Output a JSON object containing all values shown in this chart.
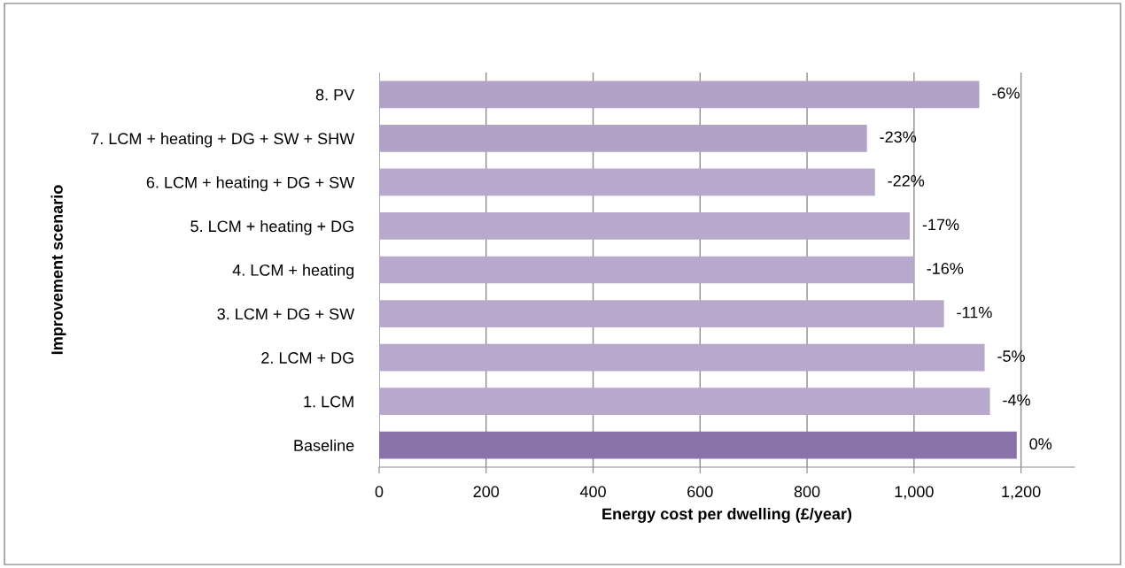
{
  "chart_data": {
    "type": "bar",
    "orientation": "horizontal",
    "xlabel": "Energy cost per dwelling (£/year)",
    "ylabel": "Improvement scenario",
    "categories": [
      "8. PV",
      "7. LCM + heating + DG + SW + SHW",
      "6. LCM + heating + DG + SW",
      "5. LCM + heating + DG",
      "4. LCM + heating",
      "3. LCM + DG + SW",
      "2. LCM + DG",
      "1. LCM",
      "Baseline"
    ],
    "values": [
      1122,
      912,
      927,
      992,
      1000,
      1056,
      1132,
      1142,
      1192
    ],
    "colors": [
      "#b3a2c7",
      "#b3a2c7",
      "#b8a8cb",
      "#b8a8cb",
      "#b8a8cb",
      "#b8a8cb",
      "#b8a8cb",
      "#b8a8cb",
      "#8a73a9"
    ],
    "annotations": [
      {
        "text": "-6%",
        "x": 1122,
        "y": "8. PV"
      },
      {
        "text": "-23%",
        "x": 912,
        "y": "7. LCM + heating + DG + SW + SHW"
      },
      {
        "text": "-22%",
        "x": 927,
        "y": "6. LCM + heating + DG + SW"
      },
      {
        "text": "-17%",
        "x": 992,
        "y": "5. LCM + heating + DG"
      },
      {
        "text": "-16%",
        "x": 1000,
        "y": "4. LCM + heating"
      },
      {
        "text": "-11%",
        "x": 1056,
        "y": "3. LCM + DG + SW"
      },
      {
        "text": "-5%",
        "x": 1132,
        "y": "2. LCM + DG"
      },
      {
        "text": "-4%",
        "x": 1142,
        "y": "1. LCM"
      },
      {
        "text": "0%",
        "x": 1192,
        "y": "Baseline"
      }
    ],
    "xlim": [
      0,
      1300
    ],
    "xticks": [
      0,
      200,
      400,
      600,
      800,
      {
        "value": 1000,
        "label": "1,000"
      },
      {
        "value": 1200,
        "label": "1,200"
      }
    ],
    "grid": "x",
    "legend": false
  }
}
